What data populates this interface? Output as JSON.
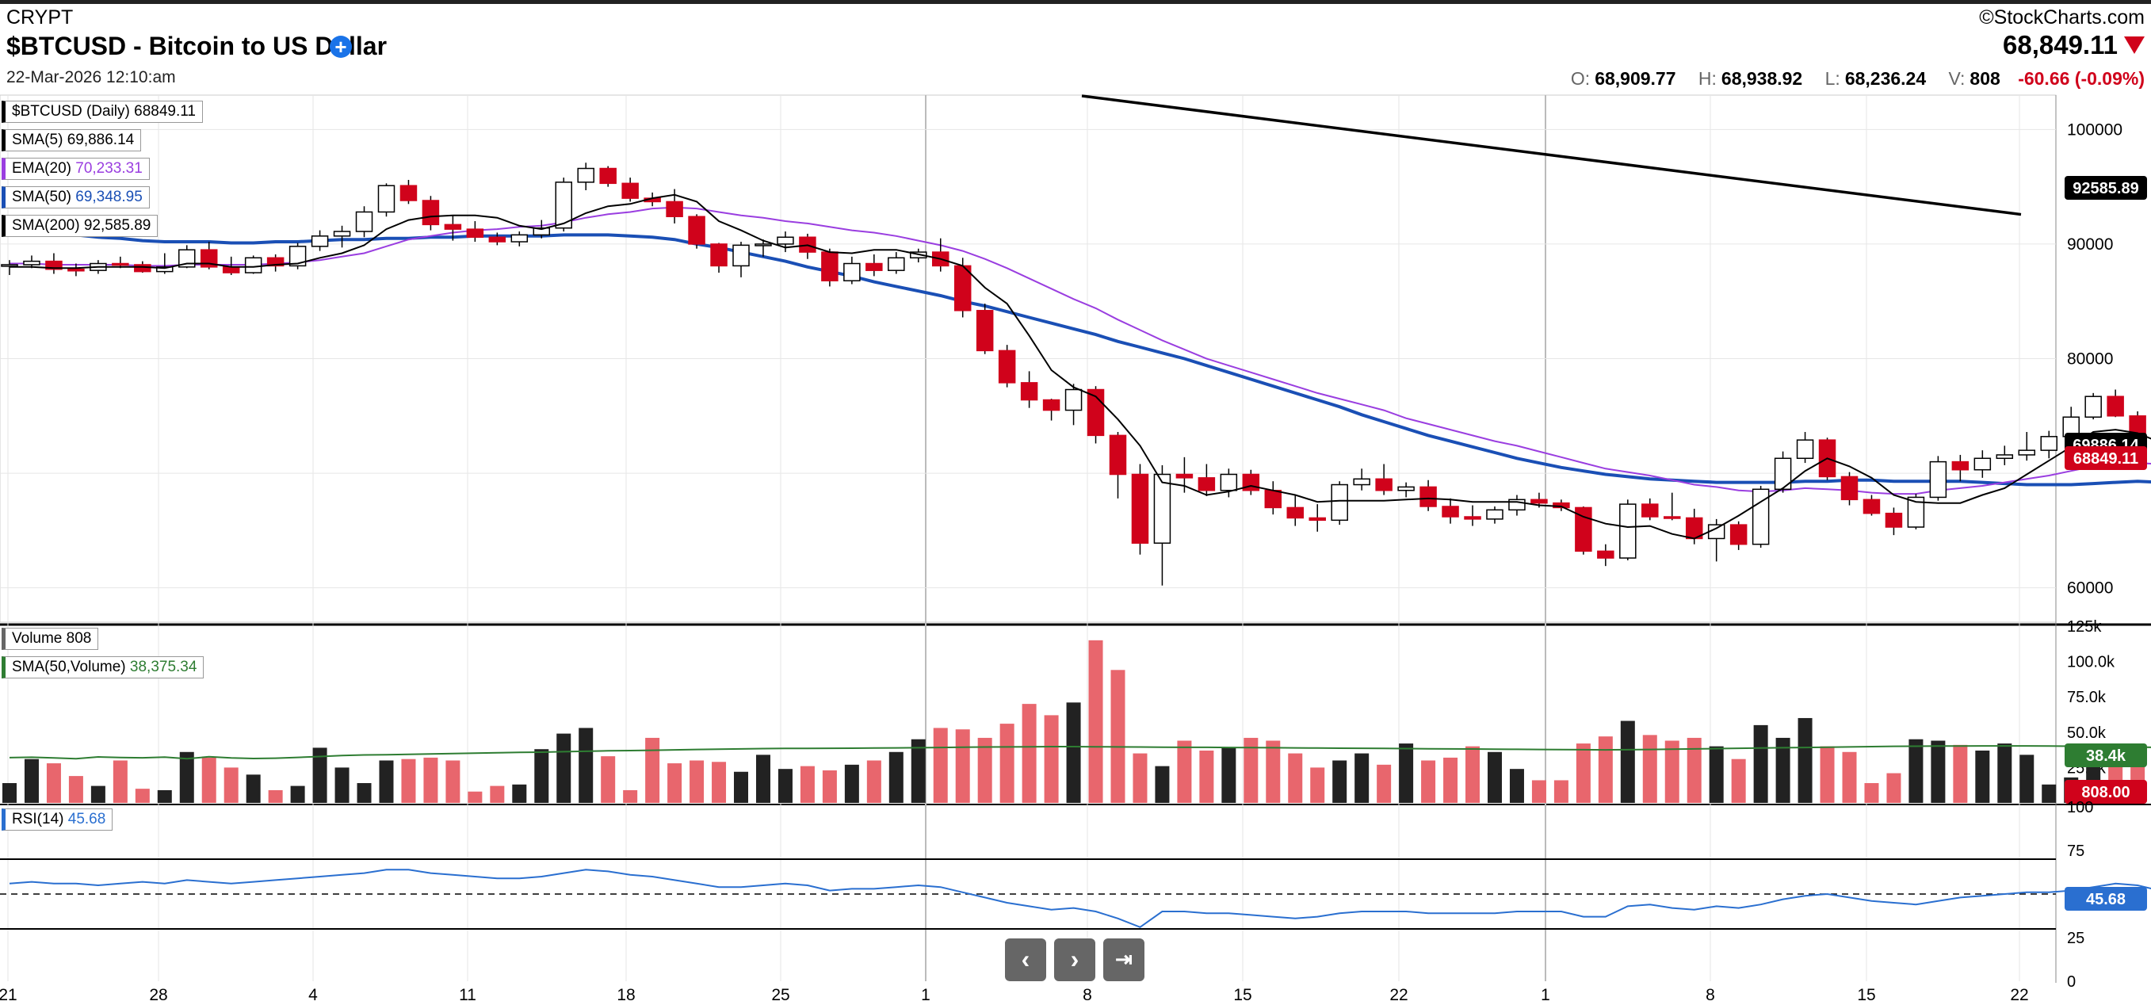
{
  "header": {
    "exchange": "CRYPT",
    "title": "$BTCUSD - Bitcoin to US Dollar",
    "plus_icon": "plus-circle-icon",
    "datetime": "22-Mar-2026 12:10:am",
    "brand": "©StockCharts.com",
    "last_price": "68,849.11",
    "ohlc": {
      "o_label": "O:",
      "o": "68,909.77",
      "h_label": "H:",
      "h": "68,938.92",
      "l_label": "L:",
      "l": "68,236.24",
      "v_label": "V:",
      "v": "808",
      "change": "-60.66 (-0.09%)"
    }
  },
  "legends": {
    "price": "$BTCUSD (Daily) 68849.11",
    "sma5_name": "SMA(5)",
    "sma5_val": "69,886.14",
    "ema20_name": "EMA(20)",
    "ema20_val": "70,233.31",
    "sma50_name": "SMA(50)",
    "sma50_val": "69,348.95",
    "sma200_name": "SMA(200)",
    "sma200_val": "92,585.89",
    "volume_name": "Volume",
    "volume_val": "808",
    "volsma_name": "SMA(50,Volume)",
    "volsma_val": "38,375.34",
    "rsi_name": "RSI(14)",
    "rsi_val": "45.68"
  },
  "nav": {
    "prev_icon": "chevron-left-icon",
    "next_icon": "chevron-right-icon",
    "end_icon": "skip-to-end-icon"
  },
  "colors": {
    "up": "#000000",
    "down": "#d0021b",
    "vol_down": "#e8666d",
    "ema": "#9a3ee0",
    "sma50": "#1a4fb5",
    "volsma": "#2e7d32",
    "rsi": "#2a6fd0"
  },
  "chart_data": {
    "type": "candlestick",
    "x_tick_labels": [
      "21",
      "28",
      "4",
      "11",
      "18",
      "25",
      "1",
      "8",
      "15",
      "22",
      "1",
      "8",
      "15",
      "22"
    ],
    "price_ticks": [
      "100000",
      "90000",
      "80000",
      "60000"
    ],
    "volume_ticks": [
      "125k",
      "100.0k",
      "75.0k",
      "50.0k",
      "25.0k"
    ],
    "rsi_ticks": [
      "100",
      "75",
      "25",
      "0"
    ],
    "badges": {
      "sma200": "92585.89",
      "price": "68849.11",
      "volsma": "38.4k",
      "volume": "808.00",
      "rsi": "45.68",
      "hidden": "69886.14"
    },
    "ylim_price": [
      57000,
      103000
    ],
    "ylim_volume": [
      0,
      125000
    ],
    "ylim_rsi": [
      0,
      100
    ],
    "ohlc": [
      [
        88100,
        88600,
        87300,
        88200
      ],
      [
        88200,
        89000,
        87900,
        88500
      ],
      [
        88500,
        89200,
        87400,
        87800
      ],
      [
        87800,
        88300,
        87200,
        87700
      ],
      [
        87700,
        88600,
        87400,
        88300
      ],
      [
        88300,
        88900,
        87900,
        88200
      ],
      [
        88200,
        88500,
        87500,
        87600
      ],
      [
        87600,
        89200,
        87400,
        88000
      ],
      [
        88000,
        89900,
        87900,
        89500
      ],
      [
        89500,
        90200,
        87800,
        88000
      ],
      [
        88000,
        88900,
        87300,
        87500
      ],
      [
        87500,
        89000,
        87400,
        88800
      ],
      [
        88800,
        89100,
        87600,
        88100
      ],
      [
        88100,
        90100,
        87800,
        89800
      ],
      [
        89800,
        91200,
        89400,
        90700
      ],
      [
        90700,
        91600,
        89700,
        91100
      ],
      [
        91100,
        93300,
        90600,
        92800
      ],
      [
        92800,
        95300,
        92400,
        95100
      ],
      [
        95100,
        95600,
        93500,
        93800
      ],
      [
        93800,
        94200,
        91200,
        91700
      ],
      [
        91700,
        92500,
        90300,
        91300
      ],
      [
        91300,
        92000,
        90200,
        90600
      ],
      [
        90600,
        91000,
        89900,
        90200
      ],
      [
        90200,
        91100,
        89800,
        90800
      ],
      [
        90800,
        92100,
        90500,
        91400
      ],
      [
        91400,
        95800,
        91100,
        95400
      ],
      [
        95400,
        97100,
        94700,
        96600
      ],
      [
        96600,
        96800,
        95000,
        95300
      ],
      [
        95300,
        95800,
        93700,
        94000
      ],
      [
        94000,
        94500,
        93300,
        93700
      ],
      [
        93700,
        94800,
        91800,
        92400
      ],
      [
        92400,
        92600,
        89600,
        90000
      ],
      [
        90000,
        90100,
        87500,
        88100
      ],
      [
        88100,
        90200,
        87100,
        89900
      ],
      [
        89900,
        90400,
        88900,
        90000
      ],
      [
        90000,
        91100,
        89300,
        90600
      ],
      [
        90600,
        90900,
        88700,
        89300
      ],
      [
        89300,
        89600,
        86300,
        86800
      ],
      [
        86800,
        88900,
        86500,
        88300
      ],
      [
        88300,
        89100,
        87200,
        87700
      ],
      [
        87700,
        89300,
        87400,
        88800
      ],
      [
        88800,
        89600,
        88400,
        89300
      ],
      [
        89300,
        90500,
        87600,
        88100
      ],
      [
        88100,
        88800,
        83600,
        84200
      ],
      [
        84200,
        84800,
        80400,
        80700
      ],
      [
        80700,
        81200,
        77500,
        77900
      ],
      [
        77900,
        78900,
        75700,
        76400
      ],
      [
        76400,
        76500,
        74600,
        75500
      ],
      [
        75500,
        77800,
        74200,
        77300
      ],
      [
        77300,
        77600,
        72600,
        73300
      ],
      [
        73300,
        73600,
        67800,
        69900
      ],
      [
        69900,
        70800,
        62900,
        63900
      ],
      [
        63900,
        70700,
        60200,
        69900
      ],
      [
        69900,
        71400,
        68300,
        69600
      ],
      [
        69600,
        70800,
        68000,
        68500
      ],
      [
        68500,
        70400,
        67900,
        69900
      ],
      [
        69900,
        70300,
        68100,
        68500
      ],
      [
        68500,
        69300,
        66400,
        67000
      ],
      [
        67000,
        68100,
        65400,
        66100
      ],
      [
        66100,
        67300,
        64900,
        65900
      ],
      [
        65900,
        69300,
        65500,
        69000
      ],
      [
        69000,
        70400,
        68500,
        69500
      ],
      [
        69500,
        70800,
        68100,
        68500
      ],
      [
        68500,
        69200,
        67900,
        68800
      ],
      [
        68800,
        69400,
        66700,
        67100
      ],
      [
        67100,
        67800,
        65600,
        66200
      ],
      [
        66200,
        67200,
        65400,
        66000
      ],
      [
        66000,
        67100,
        65600,
        66800
      ],
      [
        66800,
        68100,
        66300,
        67700
      ],
      [
        67700,
        68300,
        67000,
        67400
      ],
      [
        67400,
        67700,
        66700,
        67000
      ],
      [
        67000,
        67100,
        62900,
        63200
      ],
      [
        63200,
        63800,
        61900,
        62600
      ],
      [
        62600,
        67700,
        62400,
        67300
      ],
      [
        67300,
        67800,
        65900,
        66200
      ],
      [
        66200,
        68300,
        65900,
        66100
      ],
      [
        66100,
        66900,
        63800,
        64300
      ],
      [
        64300,
        66000,
        62300,
        65500
      ],
      [
        65500,
        65800,
        63300,
        63800
      ],
      [
        63800,
        68900,
        63500,
        68600
      ],
      [
        68600,
        71900,
        68300,
        71300
      ],
      [
        71300,
        73600,
        70900,
        72900
      ],
      [
        72900,
        73100,
        69400,
        69700
      ],
      [
        69700,
        70100,
        67200,
        67700
      ],
      [
        67700,
        68100,
        66300,
        66500
      ],
      [
        66500,
        67000,
        64600,
        65300
      ],
      [
        65300,
        68200,
        65100,
        67900
      ],
      [
        67900,
        71500,
        67600,
        71000
      ],
      [
        71000,
        71600,
        69300,
        70300
      ],
      [
        70300,
        72000,
        69600,
        71300
      ],
      [
        71300,
        72400,
        70700,
        71600
      ],
      [
        71600,
        73600,
        71100,
        72000
      ],
      [
        72000,
        73700,
        71300,
        73200
      ],
      [
        73200,
        75800,
        73000,
        74900
      ],
      [
        74900,
        77000,
        74700,
        76700
      ],
      [
        76700,
        77300,
        74900,
        75000
      ],
      [
        75000,
        75400,
        71200,
        71700
      ],
      [
        71700,
        72100,
        69700,
        70300
      ],
      [
        70300,
        71500,
        70100,
        70900
      ],
      [
        70900,
        71200,
        68900,
        69300
      ],
      [
        69300,
        69600,
        68200,
        68849
      ]
    ],
    "volume": [
      14000,
      31000,
      28000,
      19000,
      12000,
      30000,
      10000,
      9000,
      36000,
      32000,
      25000,
      20000,
      9000,
      12000,
      39000,
      25000,
      14000,
      30000,
      31000,
      32000,
      30000,
      8000,
      12000,
      13000,
      38000,
      49000,
      53000,
      33000,
      9000,
      46000,
      28000,
      30000,
      29000,
      22000,
      34000,
      24000,
      26000,
      23000,
      27000,
      30000,
      36000,
      45000,
      53000,
      52000,
      46000,
      56000,
      70000,
      62000,
      71000,
      115000,
      94000,
      35000,
      26000,
      44000,
      37000,
      39000,
      46000,
      44000,
      35000,
      25000,
      30000,
      35000,
      27000,
      42000,
      30000,
      32000,
      40000,
      36000,
      24000,
      16000,
      16000,
      42000,
      47000,
      58000,
      48000,
      44000,
      46000,
      40000,
      31000,
      55000,
      46000,
      60000,
      40000,
      36000,
      14000,
      21000,
      45000,
      44000,
      41000,
      37000,
      42000,
      34000,
      13000,
      18000,
      40000,
      38000,
      34000,
      35000,
      30000,
      10000,
      808
    ],
    "volume_sma50": [
      32000,
      32300,
      31800,
      31200,
      32500,
      32100,
      31900,
      32400,
      31200,
      32600,
      31800,
      31400,
      31600,
      32200,
      32800,
      33500,
      33900,
      34000,
      34300,
      34600,
      34900,
      35200,
      35500,
      35700,
      35900,
      36200,
      36500,
      36800,
      37000,
      37200,
      37500,
      37800,
      38000,
      38200,
      38400,
      38500,
      38500,
      38600,
      38700,
      38800,
      38900,
      39000,
      39200,
      39400,
      39500,
      39600,
      39700,
      39800,
      39800,
      39700,
      39600,
      39500,
      39400,
      39300,
      39300,
      39200,
      39100,
      39000,
      38900,
      38800,
      38700,
      38600,
      38500,
      38400,
      38300,
      38200,
      38100,
      38000,
      37900,
      37800,
      37700,
      37600,
      37500,
      37600,
      37800,
      38000,
      38200,
      38400,
      38600,
      38800,
      39000,
      39200,
      39400,
      39600,
      39800,
      40000,
      40100,
      40200,
      40200,
      40300,
      40300,
      40300,
      40200,
      40100,
      40000,
      39800,
      39500,
      39100,
      38800,
      38600,
      38375
    ],
    "sma5": [
      88000,
      88000,
      87900,
      87900,
      88000,
      88000,
      88000,
      87900,
      88300,
      88300,
      88000,
      88000,
      88200,
      88300,
      88800,
      89200,
      89900,
      91300,
      92100,
      92400,
      92500,
      92500,
      92300,
      91600,
      91300,
      91800,
      92700,
      93300,
      93500,
      94000,
      94300,
      93700,
      92000,
      91200,
      90300,
      89700,
      89900,
      89300,
      89200,
      89500,
      89500,
      89100,
      88700,
      88100,
      86200,
      84800,
      82000,
      79000,
      77500,
      76700,
      74700,
      72400,
      69200,
      68900,
      68100,
      68400,
      68900,
      68500,
      68100,
      67500,
      67600,
      67600,
      67600,
      67700,
      67800,
      67700,
      67500,
      67500,
      67500,
      67200,
      67100,
      66200,
      65600,
      65300,
      65400,
      64700,
      64300,
      65200,
      66300,
      67500,
      68700,
      70200,
      71300,
      70600,
      69600,
      68100,
      67500,
      67400,
      67400,
      68100,
      68700,
      69900,
      71100,
      72300,
      73600,
      73800,
      73500,
      72700,
      71800,
      71100,
      69886
    ],
    "ema20": [
      88300,
      88300,
      88200,
      88200,
      88200,
      88200,
      88100,
      88100,
      88200,
      88200,
      88200,
      88200,
      88300,
      88400,
      88600,
      88900,
      89200,
      89800,
      90400,
      90700,
      91000,
      91200,
      91300,
      91500,
      91600,
      91900,
      92300,
      92600,
      92800,
      93100,
      93200,
      93100,
      92800,
      92500,
      92300,
      92000,
      91800,
      91500,
      91200,
      91000,
      90700,
      90300,
      89900,
      89400,
      88700,
      87900,
      87000,
      86100,
      85200,
      84400,
      83400,
      82500,
      81600,
      80800,
      80000,
      79400,
      78800,
      78200,
      77600,
      77000,
      76500,
      76000,
      75500,
      74800,
      74300,
      73800,
      73300,
      72800,
      72400,
      71900,
      71400,
      70900,
      70400,
      70100,
      69800,
      69400,
      69000,
      68800,
      68500,
      68400,
      68500,
      68700,
      68600,
      68500,
      68300,
      68200,
      68200,
      68500,
      68700,
      68900,
      69200,
      69500,
      69800,
      70200,
      70600,
      70800,
      70900,
      70800,
      70600,
      70400,
      70233
    ],
    "sma50": [
      91400,
      91300,
      91100,
      90800,
      90600,
      90500,
      90300,
      90200,
      90200,
      90200,
      90100,
      90100,
      90200,
      90200,
      90300,
      90400,
      90400,
      90500,
      90500,
      90600,
      90600,
      90700,
      90700,
      90700,
      90700,
      90800,
      90800,
      90800,
      90700,
      90600,
      90400,
      90000,
      89700,
      89300,
      88900,
      88500,
      88000,
      87600,
      87200,
      86700,
      86300,
      85900,
      85500,
      85000,
      84600,
      84100,
      83600,
      83100,
      82600,
      82100,
      81500,
      81000,
      80500,
      80000,
      79400,
      78800,
      78200,
      77600,
      77000,
      76400,
      75800,
      75100,
      74500,
      73900,
      73300,
      72800,
      72300,
      71800,
      71300,
      70900,
      70500,
      70200,
      69900,
      69700,
      69500,
      69400,
      69300,
      69200,
      69200,
      69200,
      69200,
      69300,
      69300,
      69400,
      69400,
      69300,
      69300,
      69300,
      69300,
      69200,
      69100,
      69000,
      69000,
      69000,
      69100,
      69200,
      69300,
      69200,
      69100,
      69000,
      69349
    ],
    "sma200_segment": {
      "start": 103000,
      "end": 92585.89
    },
    "rsi": [
      56,
      57,
      56,
      56,
      55,
      56,
      57,
      56,
      58,
      57,
      56,
      57,
      58,
      59,
      60,
      61,
      62,
      64,
      64,
      62,
      61,
      60,
      59,
      59,
      60,
      62,
      64,
      63,
      61,
      60,
      58,
      56,
      54,
      54,
      55,
      56,
      55,
      52,
      53,
      53,
      54,
      55,
      54,
      51,
      48,
      45,
      43,
      41,
      42,
      40,
      36,
      31,
      40,
      40,
      39,
      39,
      38,
      37,
      36,
      37,
      39,
      40,
      40,
      40,
      39,
      39,
      39,
      39,
      40,
      40,
      40,
      37,
      37,
      43,
      44,
      42,
      41,
      43,
      42,
      44,
      47,
      49,
      50,
      48,
      46,
      45,
      44,
      46,
      48,
      49,
      50,
      51,
      51,
      52,
      54,
      56,
      55,
      52,
      50,
      49,
      45.68
    ]
  }
}
